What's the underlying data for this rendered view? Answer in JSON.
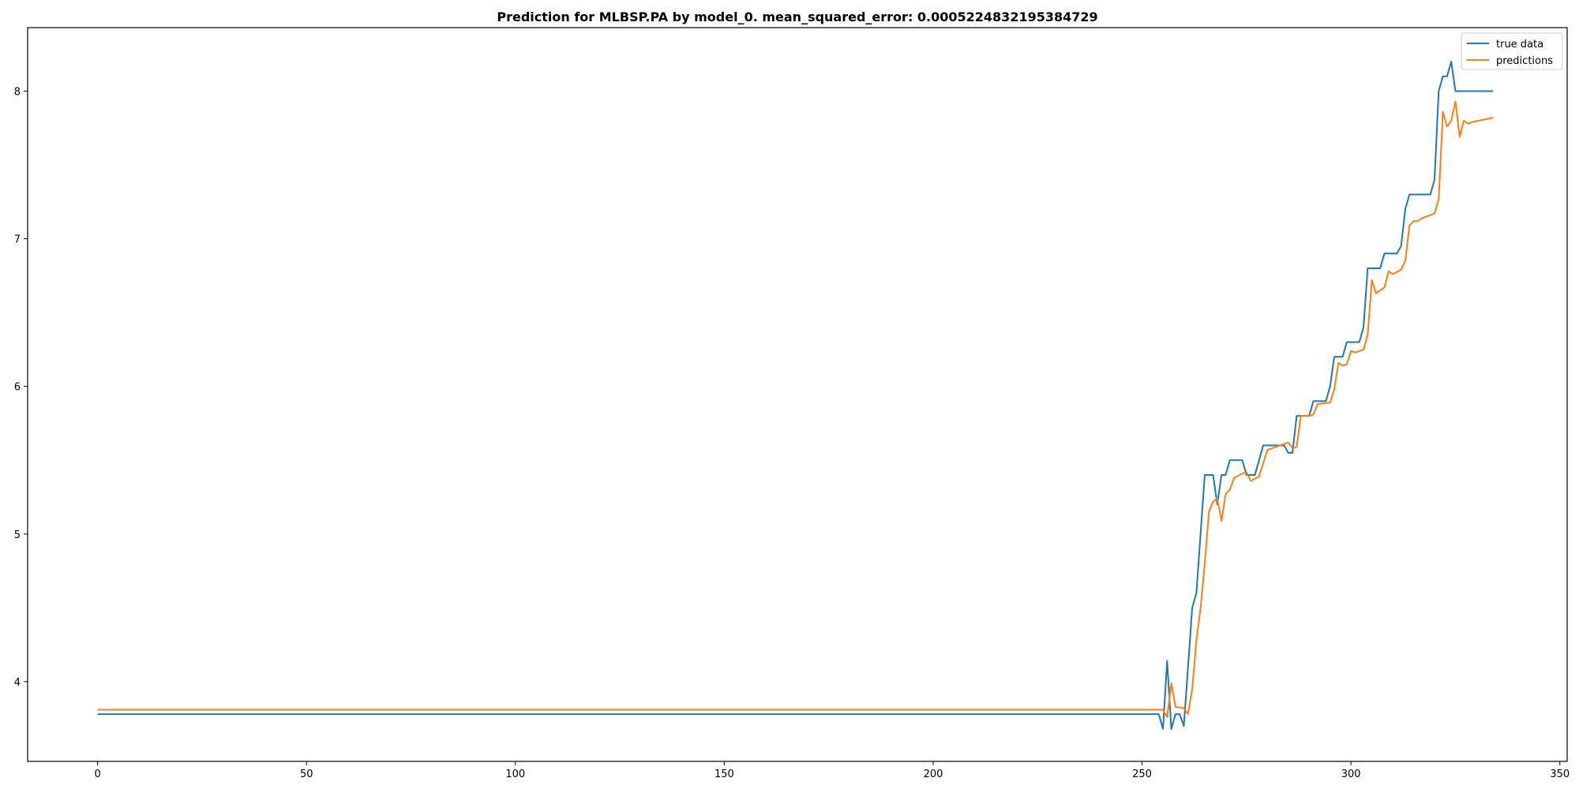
{
  "chart_data": {
    "type": "line",
    "title": "Prediction for MLBSP.PA by model_0. mean_squared_error: 0.0005224832195384729",
    "xlabel": "",
    "ylabel": "",
    "xlim": [
      -16.75,
      351.75
    ],
    "ylim": [
      3.46,
      8.43
    ],
    "xticks": [
      0,
      50,
      100,
      150,
      200,
      250,
      300,
      350
    ],
    "yticks": [
      4,
      5,
      6,
      7,
      8
    ],
    "grid": false,
    "legend": "top-right",
    "series": [
      {
        "name": "true data",
        "color": "#1f77b4",
        "points": [
          [
            0,
            3.78
          ],
          [
            254,
            3.78
          ],
          [
            255,
            3.68
          ],
          [
            256,
            4.14
          ],
          [
            257,
            3.68
          ],
          [
            258,
            3.78
          ],
          [
            259,
            3.78
          ],
          [
            260,
            3.7
          ],
          [
            261,
            4.1
          ],
          [
            262,
            4.5
          ],
          [
            263,
            4.6
          ],
          [
            265,
            5.4
          ],
          [
            267,
            5.4
          ],
          [
            268,
            5.2
          ],
          [
            269,
            5.4
          ],
          [
            270,
            5.4
          ],
          [
            271,
            5.5
          ],
          [
            274,
            5.5
          ],
          [
            275,
            5.4
          ],
          [
            277,
            5.4
          ],
          [
            279,
            5.6
          ],
          [
            284,
            5.6
          ],
          [
            285,
            5.55
          ],
          [
            286,
            5.55
          ],
          [
            287,
            5.8
          ],
          [
            290,
            5.8
          ],
          [
            291,
            5.9
          ],
          [
            294,
            5.9
          ],
          [
            295,
            6.0
          ],
          [
            296,
            6.2
          ],
          [
            298,
            6.2
          ],
          [
            299,
            6.3
          ],
          [
            302,
            6.3
          ],
          [
            303,
            6.4
          ],
          [
            304,
            6.8
          ],
          [
            307,
            6.8
          ],
          [
            308,
            6.9
          ],
          [
            311,
            6.9
          ],
          [
            312,
            6.95
          ],
          [
            313,
            7.2
          ],
          [
            314,
            7.3
          ],
          [
            319,
            7.3
          ],
          [
            320,
            7.4
          ],
          [
            321,
            8.0
          ],
          [
            322,
            8.1
          ],
          [
            323,
            8.1
          ],
          [
            324,
            8.2
          ],
          [
            325,
            8.0
          ],
          [
            334,
            8.0
          ]
        ]
      },
      {
        "name": "predictions",
        "color": "#ff7f0e",
        "points": [
          [
            0,
            3.81
          ],
          [
            255,
            3.81
          ],
          [
            256,
            3.76
          ],
          [
            257,
            3.99
          ],
          [
            258,
            3.83
          ],
          [
            260,
            3.82
          ],
          [
            261,
            3.78
          ],
          [
            262,
            3.95
          ],
          [
            263,
            4.28
          ],
          [
            264,
            4.5
          ],
          [
            265,
            4.8
          ],
          [
            266,
            5.15
          ],
          [
            267,
            5.22
          ],
          [
            268,
            5.24
          ],
          [
            269,
            5.09
          ],
          [
            270,
            5.27
          ],
          [
            271,
            5.3
          ],
          [
            272,
            5.38
          ],
          [
            274,
            5.41
          ],
          [
            275,
            5.42
          ],
          [
            276,
            5.36
          ],
          [
            278,
            5.39
          ],
          [
            280,
            5.57
          ],
          [
            283,
            5.6
          ],
          [
            285,
            5.62
          ],
          [
            286,
            5.58
          ],
          [
            287,
            5.59
          ],
          [
            288,
            5.8
          ],
          [
            290,
            5.8
          ],
          [
            291,
            5.81
          ],
          [
            292,
            5.88
          ],
          [
            295,
            5.89
          ],
          [
            296,
            5.98
          ],
          [
            297,
            6.16
          ],
          [
            298,
            6.14
          ],
          [
            299,
            6.15
          ],
          [
            300,
            6.24
          ],
          [
            301,
            6.23
          ],
          [
            303,
            6.25
          ],
          [
            304,
            6.35
          ],
          [
            305,
            6.72
          ],
          [
            306,
            6.63
          ],
          [
            308,
            6.67
          ],
          [
            309,
            6.78
          ],
          [
            310,
            6.76
          ],
          [
            312,
            6.79
          ],
          [
            313,
            6.85
          ],
          [
            314,
            7.09
          ],
          [
            315,
            7.12
          ],
          [
            316,
            7.12
          ],
          [
            317,
            7.14
          ],
          [
            320,
            7.17
          ],
          [
            321,
            7.27
          ],
          [
            322,
            7.86
          ],
          [
            323,
            7.76
          ],
          [
            324,
            7.8
          ],
          [
            325,
            7.93
          ],
          [
            326,
            7.69
          ],
          [
            327,
            7.8
          ],
          [
            328,
            7.78
          ],
          [
            329,
            7.79
          ],
          [
            334,
            7.82
          ]
        ]
      }
    ]
  }
}
